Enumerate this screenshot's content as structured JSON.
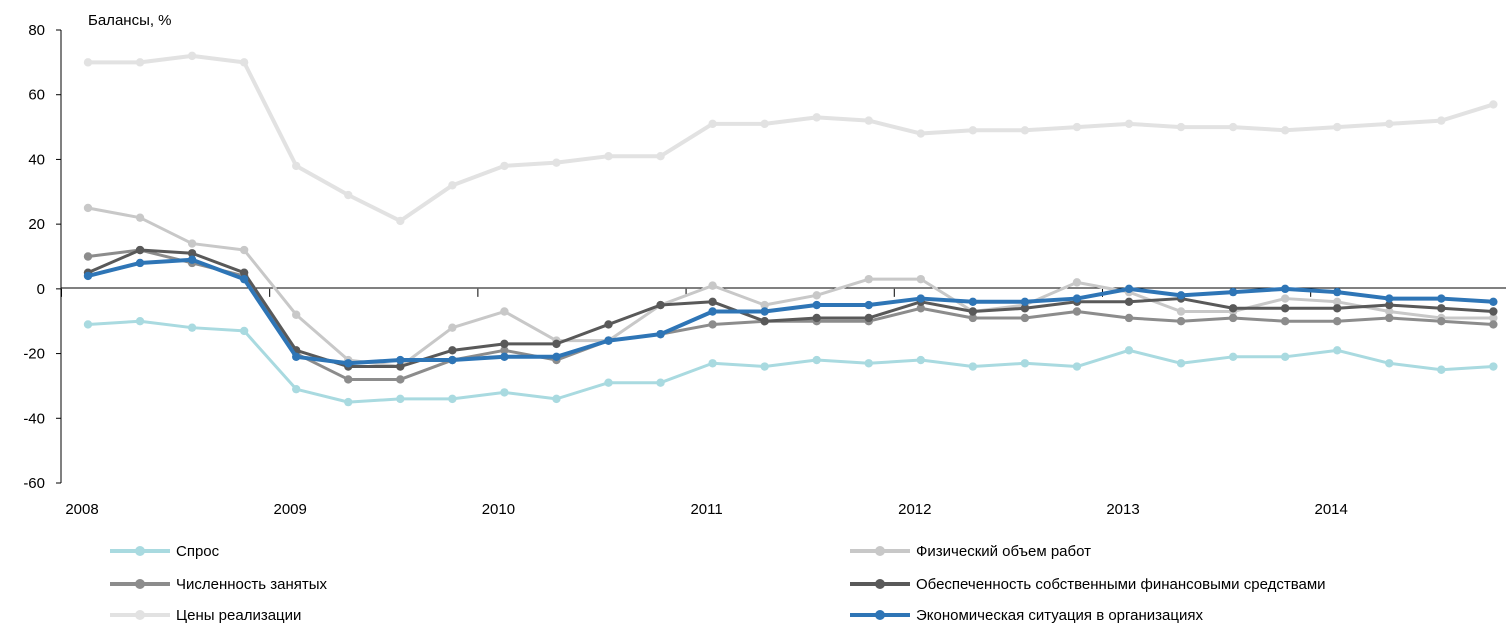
{
  "chart_data": {
    "type": "line",
    "ylabel": "Балансы, %",
    "ylim": [
      -60,
      80
    ],
    "yticks": [
      -60,
      -40,
      -20,
      0,
      20,
      40,
      60,
      80
    ],
    "xlim": [
      2008,
      2014.75
    ],
    "xticks": [
      "2008",
      "2009",
      "2010",
      "2011",
      "2012",
      "2013",
      "2014"
    ],
    "x": [
      2008,
      2008.25,
      2008.5,
      2008.75,
      2009,
      2009.25,
      2009.5,
      2009.75,
      2010,
      2010.25,
      2010.5,
      2010.75,
      2011,
      2011.25,
      2011.5,
      2011.75,
      2012,
      2012.25,
      2012.5,
      2012.75,
      2013,
      2013.25,
      2013.5,
      2013.75,
      2014,
      2014.25,
      2014.5,
      2014.75
    ],
    "grid": false,
    "legend_position": "bottom",
    "series": [
      {
        "name": "Спрос",
        "color": "#a9dae0",
        "width": 3,
        "values": [
          -11,
          -10,
          -12,
          -13,
          -31,
          -35,
          -34,
          -34,
          -32,
          -34,
          -29,
          -29,
          -23,
          -24,
          -22,
          -23,
          -22,
          -24,
          -23,
          -24,
          -19,
          -23,
          -21,
          -21,
          -19,
          -23,
          -25,
          -24
        ]
      },
      {
        "name": "Физический объем работ",
        "color": "#c8c8c8",
        "width": 3,
        "values": [
          25,
          22,
          14,
          12,
          -8,
          -22,
          -24,
          -12,
          -7,
          -16,
          -16,
          -5,
          1,
          -5,
          -2,
          3,
          3,
          -7,
          -5,
          2,
          -1,
          -7,
          -7,
          -3,
          -4,
          -7,
          -9,
          -9
        ]
      },
      {
        "name": "Численность занятых",
        "color": "#8c8c8c",
        "width": 3,
        "values": [
          10,
          12,
          8,
          4,
          -20,
          -28,
          -28,
          -22,
          -19,
          -22,
          -16,
          -14,
          -11,
          -10,
          -10,
          -10,
          -6,
          -9,
          -9,
          -7,
          -9,
          -10,
          -9,
          -10,
          -10,
          -9,
          -10,
          -11
        ]
      },
      {
        "name": "Обеспеченность собственными финансовыми средствами",
        "color": "#595959",
        "width": 3,
        "values": [
          5,
          12,
          11,
          5,
          -19,
          -24,
          -24,
          -19,
          -17,
          -17,
          -11,
          -5,
          -4,
          -10,
          -9,
          -9,
          -4,
          -7,
          -6,
          -4,
          -4,
          -3,
          -6,
          -6,
          -6,
          -5,
          -6,
          -7
        ]
      },
      {
        "name": "Цены реализации",
        "color": "#e2e2e2",
        "width": 4,
        "values": [
          70,
          70,
          72,
          70,
          38,
          29,
          21,
          32,
          38,
          39,
          41,
          41,
          51,
          51,
          53,
          52,
          48,
          49,
          49,
          50,
          51,
          50,
          50,
          49,
          50,
          51,
          52,
          57
        ]
      },
      {
        "name": "Экономическая ситуация в организациях",
        "color": "#2e75b6",
        "width": 4,
        "values": [
          4,
          8,
          9,
          3,
          -21,
          -23,
          -22,
          -22,
          -21,
          -21,
          -16,
          -14,
          -7,
          -7,
          -5,
          -5,
          -3,
          -4,
          -4,
          -3,
          0,
          -2,
          -1,
          0,
          -1,
          -3,
          -3,
          -4
        ]
      }
    ],
    "legend_order": [
      0,
      1,
      2,
      3,
      4,
      5
    ]
  }
}
